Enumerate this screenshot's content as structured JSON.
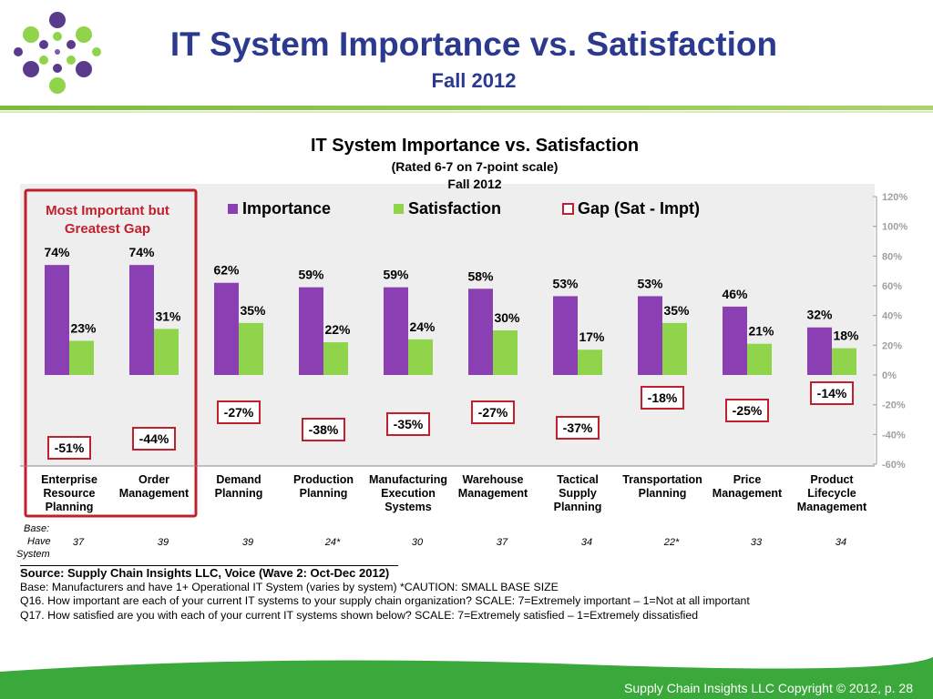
{
  "slide": {
    "title": "IT System Importance vs. Satisfaction",
    "subtitle": "Fall 2012",
    "footer": "Supply Chain Insights LLC Copyright © 2012, p. 28"
  },
  "colors": {
    "importance": "#8a3fb3",
    "satisfaction": "#8fd44a",
    "gap_border": "#c0202e",
    "title_blue": "#2b3a8f",
    "footer_green": "#3aa83a"
  },
  "chart_data": {
    "type": "bar",
    "title": "IT System Importance vs. Satisfaction",
    "subtitle_lines": [
      "(Rated 6-7 on 7-point scale)",
      "Fall 2012"
    ],
    "callout": [
      "Most Important but",
      "Greatest Gap"
    ],
    "legend": [
      "Importance",
      "Satisfaction",
      "Gap (Sat - Impt)"
    ],
    "categories": [
      [
        "Enterprise",
        "Resource",
        "Planning"
      ],
      [
        "Order",
        "Management"
      ],
      [
        "Demand",
        "Planning"
      ],
      [
        "Production",
        "Planning"
      ],
      [
        "Manufacturing",
        "Execution",
        "Systems"
      ],
      [
        "Warehouse",
        "Management"
      ],
      [
        "Tactical",
        "Supply",
        "Planning"
      ],
      [
        "Transportation",
        "Planning"
      ],
      [
        "Price",
        "Management"
      ],
      [
        "Product",
        "Lifecycle",
        "Management"
      ]
    ],
    "series": [
      {
        "name": "Importance",
        "values": [
          74,
          74,
          62,
          59,
          59,
          58,
          53,
          53,
          46,
          32
        ]
      },
      {
        "name": "Satisfaction",
        "values": [
          23,
          31,
          35,
          22,
          24,
          30,
          17,
          35,
          21,
          18
        ]
      },
      {
        "name": "Gap (Sat - Impt)",
        "values": [
          -51,
          -44,
          -27,
          -38,
          -35,
          -27,
          -37,
          -18,
          -25,
          -14
        ]
      }
    ],
    "ylim": [
      -60,
      120
    ],
    "yticks": [
      -60,
      -40,
      -20,
      0,
      20,
      40,
      60,
      80,
      100,
      120
    ],
    "base_label": [
      "Base:",
      "Have",
      "System"
    ],
    "base_values": [
      "37",
      "39",
      "39",
      "24*",
      "30",
      "37",
      "34",
      "22*",
      "33",
      "34"
    ]
  },
  "notes": {
    "source": "Source: Supply Chain Insights LLC, Voice (Wave 2: Oct-Dec 2012)",
    "base": "Base: Manufacturers and have 1+ Operational IT System (varies by system) *CAUTION: SMALL BASE SIZE",
    "q16": "Q16. How important are each of your current IT systems to your supply chain organization? SCALE: 7=Extremely important – 1=Not at all important",
    "q17": "Q17. How satisfied are you with each of your current IT systems shown below? SCALE: 7=Extremely satisfied – 1=Extremely dissatisfied"
  }
}
